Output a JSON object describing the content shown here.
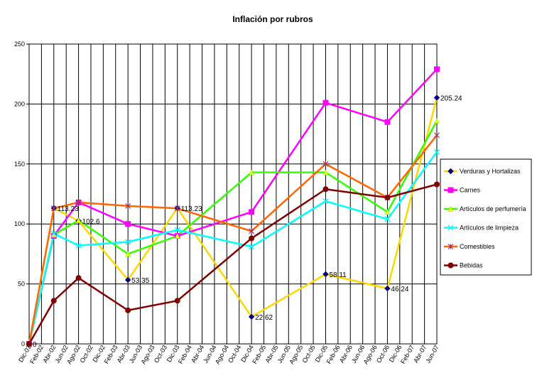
{
  "chart_data": {
    "type": "line",
    "title": "Inflación por rubros",
    "xlabel": "",
    "ylabel": "",
    "ylim": [
      0,
      250
    ],
    "yticks": [
      "0",
      "50",
      "100",
      "150",
      "200",
      "250"
    ],
    "categories": [
      "Dic-01",
      "Feb-02",
      "Abr-02",
      "Jun-02",
      "Ago-02",
      "Oct-02",
      "Dic-02",
      "Feb-03",
      "Abr-03",
      "Jun-03",
      "Ago-03",
      "Oct-03",
      "Dic-03",
      "Feb-04",
      "Abr-04",
      "Jun-04",
      "Ago-04",
      "Oct-04",
      "Dic-04",
      "Feb-05",
      "Abr-05",
      "Jun-05",
      "Ago-05",
      "Oct-05",
      "Dic-05",
      "Feb-06",
      "Abr-06",
      "Jun-06",
      "Ago-06",
      "Oct-06",
      "Dic-06",
      "Feb-07",
      "Abr-07",
      "Jun-07"
    ],
    "grid": true,
    "legend": "right",
    "series": [
      {
        "name": "Verduras y Hortalizas",
        "color": "#FFD700",
        "marker": "diamond",
        "markerColor": "#000080",
        "points": [
          [
            0,
            0
          ],
          [
            2,
            113.23
          ],
          [
            4,
            102.6
          ],
          [
            8,
            53.35
          ],
          [
            12,
            113.23
          ],
          [
            18,
            22.62
          ],
          [
            24,
            58.11
          ],
          [
            29,
            46.24
          ],
          [
            33,
            205.24
          ]
        ]
      },
      {
        "name": "Carnes",
        "color": "#FF00FF",
        "marker": "square",
        "markerColor": "#FF00FF",
        "points": [
          [
            0,
            0
          ],
          [
            2,
            90
          ],
          [
            4,
            118
          ],
          [
            8,
            100
          ],
          [
            12,
            90
          ],
          [
            18,
            110
          ],
          [
            24,
            201
          ],
          [
            29,
            185
          ],
          [
            33,
            229
          ]
        ]
      },
      {
        "name": "Artículos de perfumería",
        "color": "#33FF00",
        "marker": "triangle",
        "markerColor": "#FFFF00",
        "points": [
          [
            0,
            0
          ],
          [
            2,
            91
          ],
          [
            4,
            103
          ],
          [
            8,
            75
          ],
          [
            12,
            90
          ],
          [
            18,
            143
          ],
          [
            24,
            143
          ],
          [
            29,
            110
          ],
          [
            33,
            186
          ]
        ]
      },
      {
        "name": "Artículos de limpieza",
        "color": "#00FFFF",
        "marker": "x",
        "markerColor": "#00FFFF",
        "points": [
          [
            0,
            0
          ],
          [
            2,
            92
          ],
          [
            4,
            82
          ],
          [
            8,
            85
          ],
          [
            12,
            95
          ],
          [
            18,
            81
          ],
          [
            24,
            119
          ],
          [
            29,
            104
          ],
          [
            33,
            160
          ]
        ]
      },
      {
        "name": "Comestibles",
        "color": "#FF6600",
        "marker": "asterisk",
        "markerColor": "#993366",
        "points": [
          [
            0,
            0
          ],
          [
            2,
            113
          ],
          [
            4,
            118
          ],
          [
            8,
            115
          ],
          [
            12,
            113
          ],
          [
            18,
            94
          ],
          [
            24,
            150
          ],
          [
            29,
            122
          ],
          [
            33,
            174
          ]
        ]
      },
      {
        "name": "Bebidas",
        "color": "#800000",
        "marker": "circle",
        "markerColor": "#800000",
        "points": [
          [
            0,
            0
          ],
          [
            2,
            36
          ],
          [
            4,
            55
          ],
          [
            8,
            28
          ],
          [
            12,
            36
          ],
          [
            18,
            88
          ],
          [
            24,
            129
          ],
          [
            29,
            122
          ],
          [
            33,
            133
          ]
        ]
      }
    ],
    "data_labels": [
      {
        "text": "0",
        "series": 0,
        "index": 0
      },
      {
        "text": "113.23",
        "series": 0,
        "index": 1
      },
      {
        "text": "102.6",
        "series": 0,
        "index": 2
      },
      {
        "text": "53.35",
        "series": 0,
        "index": 3
      },
      {
        "text": "113.23",
        "series": 0,
        "index": 4
      },
      {
        "text": "22.62",
        "series": 0,
        "index": 5
      },
      {
        "text": "58.11",
        "series": 0,
        "index": 6
      },
      {
        "text": "46.24",
        "series": 0,
        "index": 7
      },
      {
        "text": "205.24",
        "series": 0,
        "index": 8
      }
    ]
  }
}
